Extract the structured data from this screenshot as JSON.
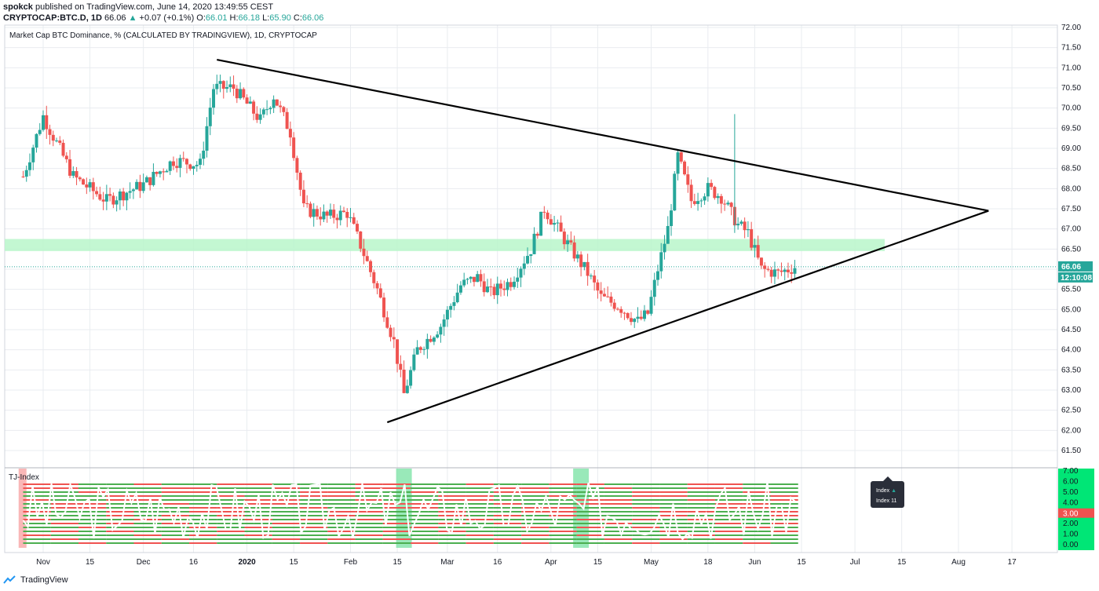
{
  "header": {
    "author": "spokck",
    "published_text": "published on TradingView.com, June 14, 2020 13:49:55 CEST",
    "symbol": "CRYPTOCAP:BTC.D, 1D",
    "last": "66.06",
    "change_arrow": "▲",
    "change": "+0.07 (+0.1%)",
    "o_label": "O:",
    "o_value": "66.01",
    "h_label": "H:",
    "h_value": "66.18",
    "l_label": "L:",
    "l_value": "65.90",
    "c_label": "C:",
    "c_value": "66.06"
  },
  "footer": {
    "brand": "TradingView"
  },
  "tooltip": {
    "line1": "Index",
    "line1_arrow": "▲",
    "line2": "Index 11"
  },
  "colors": {
    "up": "#26a69a",
    "down": "#ef5350",
    "grid": "#e9ecf0",
    "zone": "#b9f6ca",
    "trendline": "#000000",
    "price_badge": "#26a69a",
    "index_green": "#4caf50",
    "index_red": "#ef5350"
  },
  "chart_data": [
    {
      "type": "candlestick",
      "title": "Market Cap BTC Dominance, % (CALCULATED BY TRADINGVIEW), 1D, CRYPTOCAP",
      "ylim": [
        61.0,
        72.0
      ],
      "yticks": [
        "61.50",
        "62.00",
        "62.50",
        "63.00",
        "63.50",
        "64.00",
        "64.50",
        "65.00",
        "65.50",
        "66.00",
        "66.50",
        "67.00",
        "67.50",
        "68.00",
        "68.50",
        "69.00",
        "69.50",
        "70.00",
        "70.50",
        "71.00",
        "71.50",
        "72.00"
      ],
      "xticks": [
        "Nov",
        "15",
        "Dec",
        "16",
        "2020",
        "15",
        "Feb",
        "15",
        "Mar",
        "16",
        "Apr",
        "15",
        "May",
        "18",
        "Jun",
        "15",
        "Jul",
        "15",
        "Aug",
        "17"
      ],
      "last_price_label": "66.06",
      "countdown_label": "12:10:08",
      "horizontal_zone": {
        "from": 66.45,
        "to": 66.75
      },
      "trendlines": [
        {
          "name": "upper",
          "start": [
            "2019-12-23",
            71.2
          ],
          "end": [
            "2020-08-10",
            67.45
          ]
        },
        {
          "name": "lower",
          "start": [
            "2020-02-12",
            62.2
          ],
          "end": [
            "2020-08-10",
            67.45
          ]
        }
      ],
      "anchor_points": [
        [
          "2019-10-26",
          68.3
        ],
        [
          "2019-11-01",
          69.8
        ],
        [
          "2019-11-10",
          68.3
        ],
        [
          "2019-11-20",
          67.7
        ],
        [
          "2019-12-01",
          68.1
        ],
        [
          "2019-12-10",
          68.7
        ],
        [
          "2019-12-18",
          68.6
        ],
        [
          "2019-12-22",
          70.5
        ],
        [
          "2019-12-28",
          70.5
        ],
        [
          "2020-01-05",
          69.7
        ],
        [
          "2020-01-09",
          70.3
        ],
        [
          "2020-01-14",
          69.4
        ],
        [
          "2020-01-18",
          67.5
        ],
        [
          "2020-01-25",
          67.3
        ],
        [
          "2020-01-31",
          67.4
        ],
        [
          "2020-02-04",
          66.6
        ],
        [
          "2020-02-09",
          65.5
        ],
        [
          "2020-02-14",
          64.2
        ],
        [
          "2020-02-17",
          62.9
        ],
        [
          "2020-02-21",
          64.0
        ],
        [
          "2020-02-28",
          64.6
        ],
        [
          "2020-03-05",
          65.6
        ],
        [
          "2020-03-10",
          65.8
        ],
        [
          "2020-03-14",
          65.4
        ],
        [
          "2020-03-20",
          65.7
        ],
        [
          "2020-03-26",
          66.5
        ],
        [
          "2020-03-30",
          67.5
        ],
        [
          "2020-04-03",
          67.0
        ],
        [
          "2020-04-07",
          66.5
        ],
        [
          "2020-04-12",
          65.9
        ],
        [
          "2020-04-16",
          65.3
        ],
        [
          "2020-04-21",
          65.1
        ],
        [
          "2020-04-27",
          64.7
        ],
        [
          "2020-04-30",
          64.9
        ],
        [
          "2020-05-03",
          66.0
        ],
        [
          "2020-05-06",
          67.0
        ],
        [
          "2020-05-09",
          68.8
        ],
        [
          "2020-05-13",
          67.7
        ],
        [
          "2020-05-18",
          68.0
        ],
        [
          "2020-05-22",
          67.8
        ],
        [
          "2020-05-27",
          67.1
        ],
        [
          "2020-05-30",
          66.9
        ],
        [
          "2020-06-03",
          66.0
        ],
        [
          "2020-06-08",
          65.9
        ],
        [
          "2020-06-13",
          66.06
        ]
      ],
      "spike": {
        "date": "2020-05-26",
        "high": 69.85
      }
    },
    {
      "type": "index_bands",
      "title": "TJ-Index",
      "ylim": [
        0,
        7
      ],
      "yticks": [
        "0.00",
        "1.00",
        "2.00",
        "3.00",
        "4.00",
        "5.00",
        "6.00",
        "7.00"
      ],
      "current_label": "3.00",
      "highlights": [
        {
          "date": "2019-10-27",
          "color": "red"
        },
        {
          "date": "2020-02-17",
          "color": "green"
        },
        {
          "date": "2020-04-10",
          "color": "green"
        }
      ],
      "band_rows": 16
    }
  ]
}
